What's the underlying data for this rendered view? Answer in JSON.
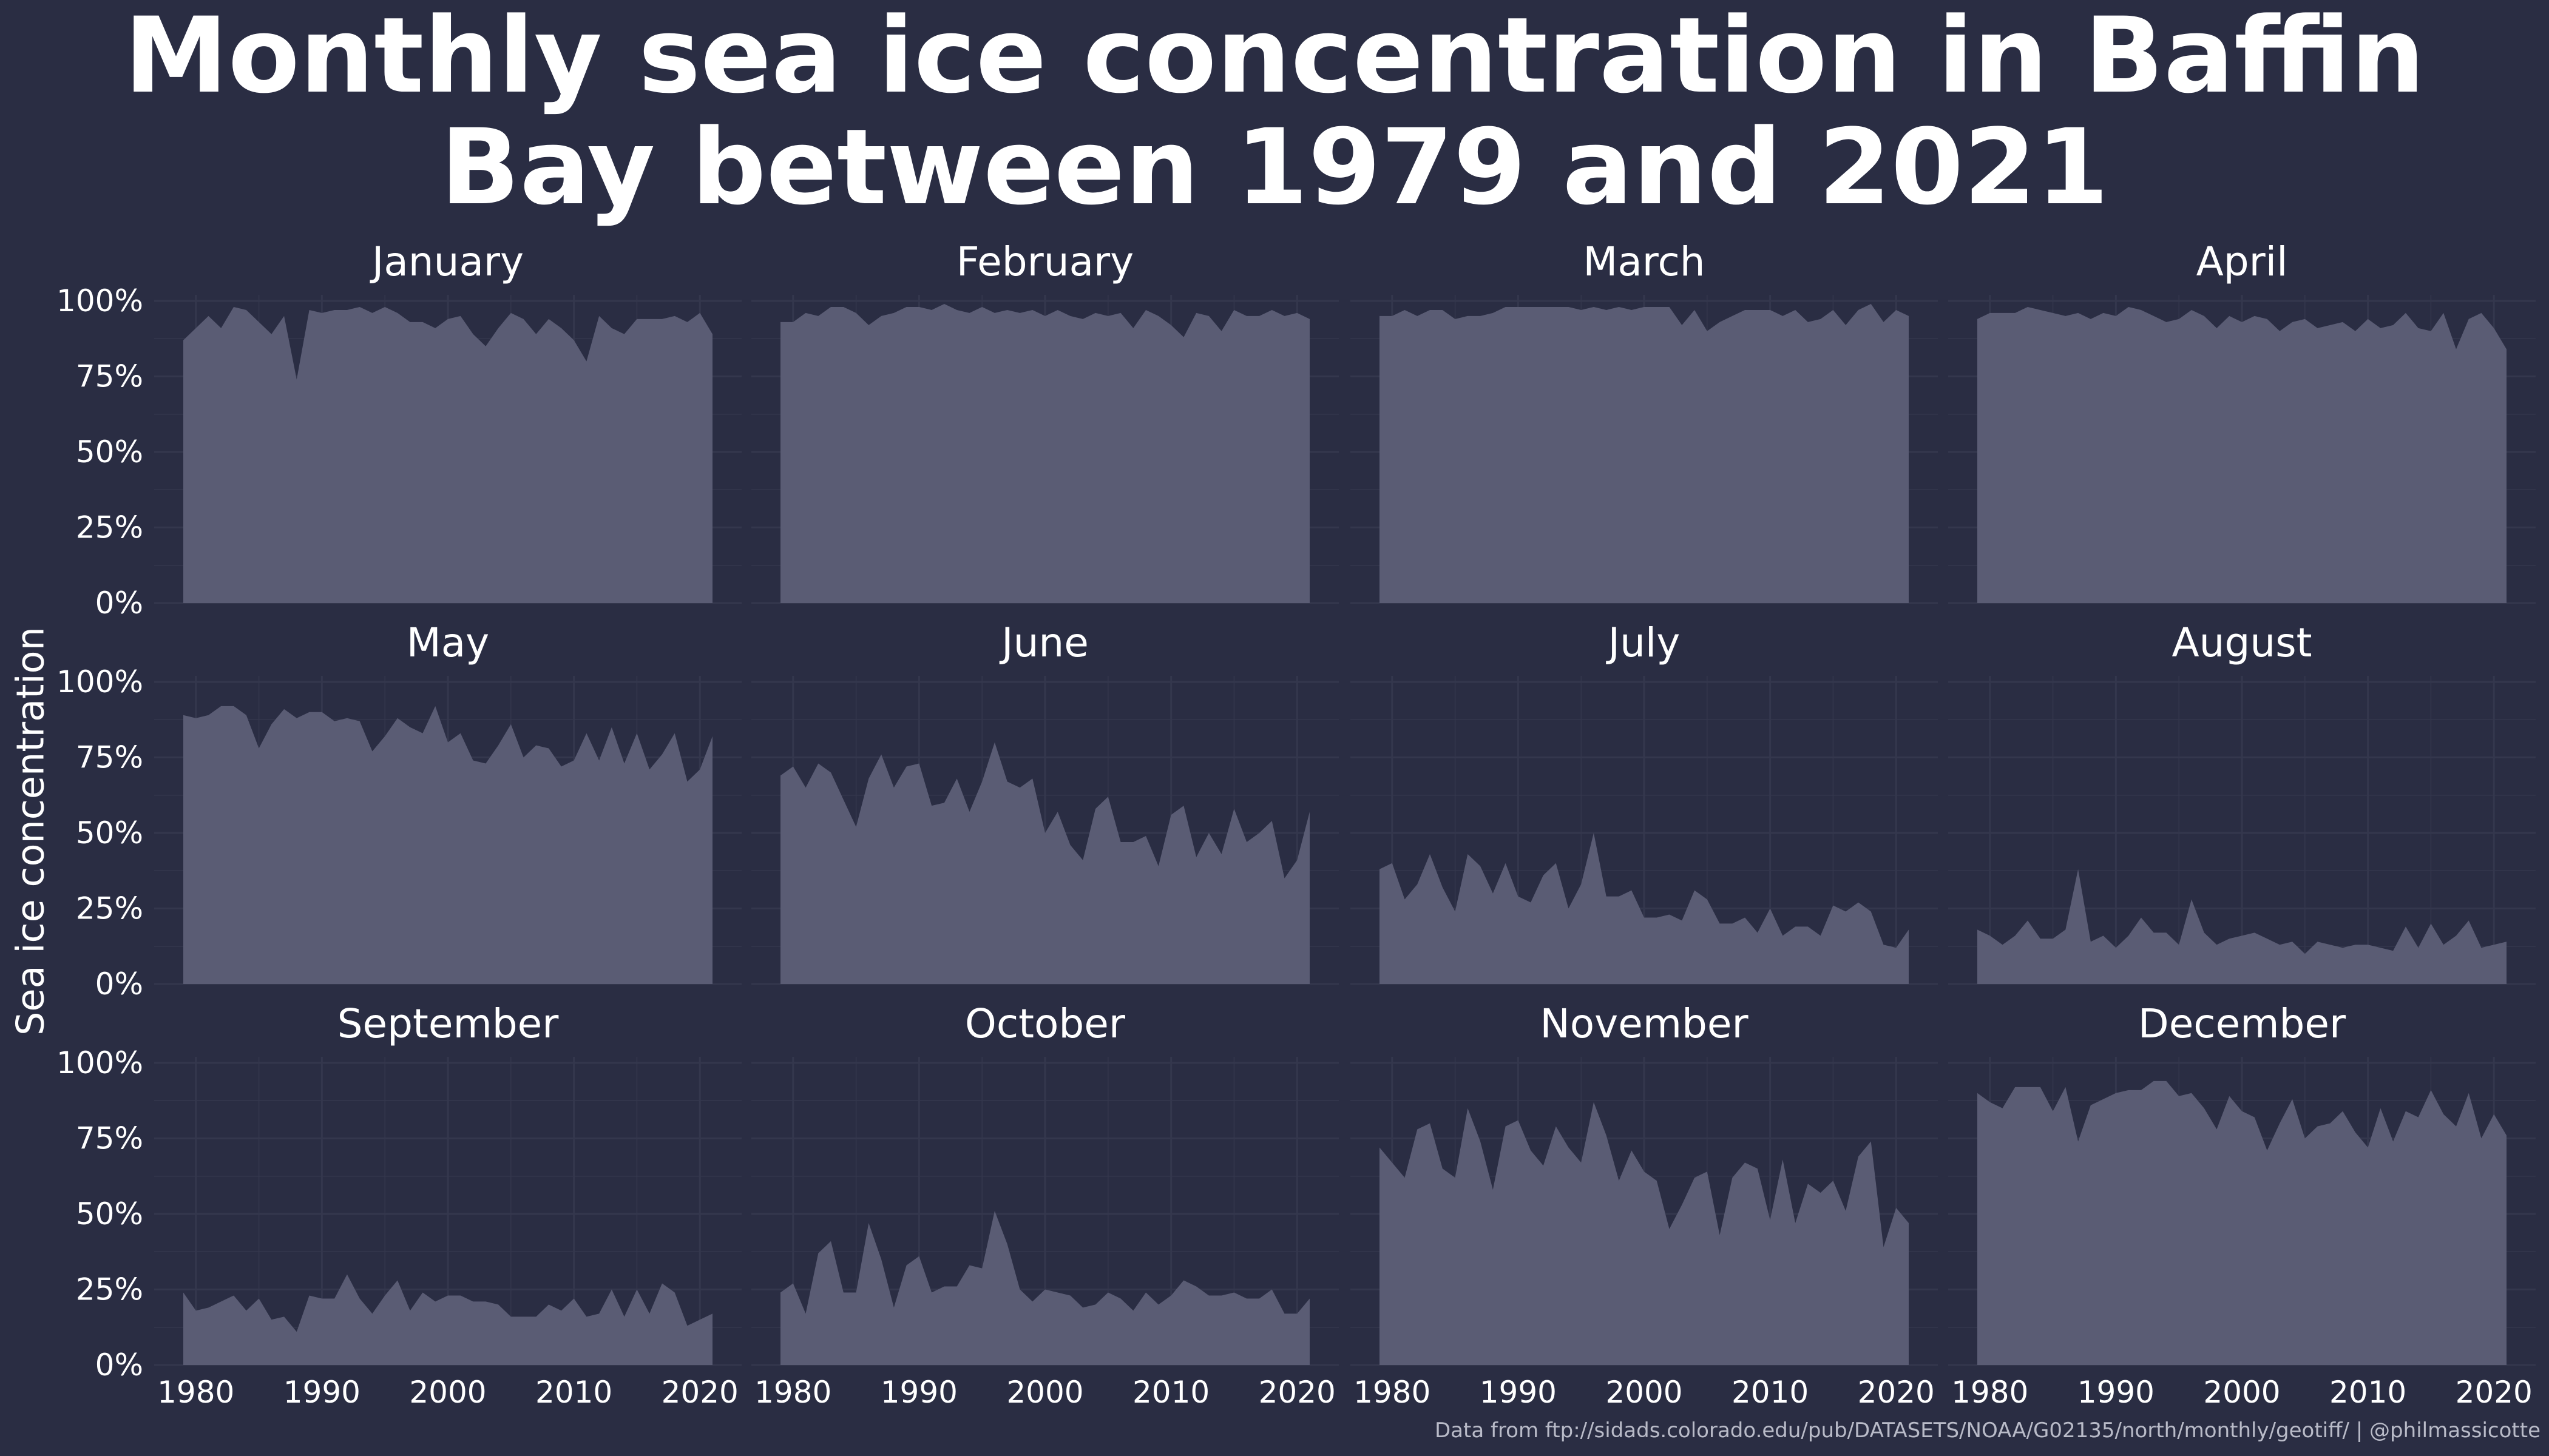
{
  "title_lines": [
    "Monthly sea ice concentration in Baffin",
    "Bay between 1979 and 2021"
  ],
  "ylabel": "Sea ice concentration",
  "caption": "Data from ftp://sidads.colorado.edu/pub/DATASETS/NOAA/G02135/north/monthly/geotiff/ | @philmassicotte",
  "colors": {
    "background": "#2a2d43",
    "area": "#5a5c74",
    "grid": "#34374d",
    "text": "#ffffff",
    "caption": "#b9bbc8"
  },
  "chart_data": {
    "type": "area",
    "layout": "facets 3 rows x 4 columns",
    "xlim": [
      1979,
      2021
    ],
    "ylim": [
      0,
      100
    ],
    "x_ticks": [
      1980,
      1990,
      2000,
      2010,
      2020
    ],
    "y_ticks": [
      "0%",
      "25%",
      "50%",
      "75%",
      "100%"
    ],
    "grid": true,
    "years": [
      1979,
      1980,
      1981,
      1982,
      1983,
      1984,
      1985,
      1986,
      1987,
      1988,
      1989,
      1990,
      1991,
      1992,
      1993,
      1994,
      1995,
      1996,
      1997,
      1998,
      1999,
      2000,
      2001,
      2002,
      2003,
      2004,
      2005,
      2006,
      2007,
      2008,
      2009,
      2010,
      2011,
      2012,
      2013,
      2014,
      2015,
      2016,
      2017,
      2018,
      2019,
      2020,
      2021
    ],
    "facets": [
      {
        "month": "January",
        "values": [
          87,
          91,
          95,
          91,
          98,
          97,
          93,
          89,
          95,
          74,
          97,
          96,
          97,
          97,
          98,
          96,
          98,
          96,
          93,
          93,
          91,
          94,
          95,
          89,
          85,
          91,
          96,
          94,
          89,
          94,
          91,
          87,
          80,
          95,
          91,
          89,
          94,
          94,
          94,
          95,
          93,
          96,
          89
        ]
      },
      {
        "month": "February",
        "values": [
          93,
          93,
          96,
          95,
          98,
          98,
          96,
          92,
          95,
          96,
          98,
          98,
          97,
          99,
          97,
          96,
          98,
          96,
          97,
          96,
          97,
          95,
          97,
          95,
          94,
          96,
          95,
          96,
          91,
          97,
          95,
          92,
          88,
          96,
          95,
          90,
          97,
          95,
          95,
          97,
          95,
          96,
          94
        ]
      },
      {
        "month": "March",
        "values": [
          95,
          95,
          97,
          95,
          97,
          97,
          94,
          95,
          95,
          96,
          98,
          98,
          98,
          98,
          98,
          98,
          97,
          98,
          97,
          98,
          97,
          98,
          98,
          98,
          92,
          97,
          90,
          93,
          95,
          97,
          97,
          97,
          95,
          97,
          93,
          94,
          97,
          92,
          97,
          99,
          93,
          97,
          95
        ]
      },
      {
        "month": "April",
        "values": [
          94,
          96,
          96,
          96,
          98,
          97,
          96,
          95,
          96,
          94,
          96,
          95,
          98,
          97,
          95,
          93,
          94,
          97,
          95,
          91,
          95,
          93,
          95,
          94,
          90,
          93,
          94,
          91,
          92,
          93,
          90,
          94,
          91,
          92,
          96,
          91,
          90,
          96,
          84,
          94,
          96,
          91,
          84
        ]
      },
      {
        "month": "May",
        "values": [
          89,
          88,
          89,
          92,
          92,
          89,
          78,
          86,
          91,
          88,
          90,
          90,
          87,
          88,
          87,
          77,
          82,
          88,
          85,
          83,
          92,
          80,
          83,
          74,
          73,
          79,
          86,
          75,
          79,
          78,
          72,
          74,
          83,
          74,
          85,
          73,
          83,
          71,
          76,
          83,
          67,
          71,
          82
        ]
      },
      {
        "month": "June",
        "values": [
          69,
          72,
          65,
          73,
          70,
          61,
          52,
          68,
          76,
          65,
          72,
          73,
          59,
          60,
          68,
          57,
          67,
          80,
          67,
          65,
          68,
          50,
          57,
          46,
          41,
          58,
          62,
          47,
          47,
          49,
          39,
          56,
          59,
          42,
          50,
          43,
          58,
          47,
          50,
          54,
          35,
          41,
          57
        ]
      },
      {
        "month": "July",
        "values": [
          38,
          40,
          28,
          33,
          43,
          32,
          24,
          43,
          39,
          30,
          40,
          29,
          27,
          36,
          40,
          25,
          33,
          50,
          29,
          29,
          31,
          22,
          22,
          23,
          21,
          31,
          28,
          20,
          20,
          22,
          17,
          25,
          16,
          19,
          19,
          16,
          26,
          24,
          27,
          24,
          13,
          12,
          18
        ]
      },
      {
        "month": "August",
        "values": [
          18,
          16,
          13,
          16,
          21,
          15,
          15,
          18,
          38,
          14,
          16,
          12,
          16,
          22,
          17,
          17,
          13,
          28,
          17,
          13,
          15,
          16,
          17,
          15,
          13,
          14,
          10,
          14,
          13,
          12,
          13,
          13,
          12,
          11,
          19,
          12,
          20,
          13,
          16,
          21,
          12,
          13,
          14
        ]
      },
      {
        "month": "September",
        "values": [
          24,
          18,
          19,
          21,
          23,
          18,
          22,
          15,
          16,
          11,
          23,
          22,
          22,
          30,
          22,
          17,
          23,
          28,
          18,
          24,
          21,
          23,
          23,
          21,
          21,
          20,
          16,
          16,
          16,
          20,
          18,
          22,
          16,
          17,
          25,
          16,
          25,
          17,
          27,
          24,
          13,
          15,
          17
        ]
      },
      {
        "month": "October",
        "values": [
          24,
          27,
          17,
          37,
          41,
          24,
          24,
          47,
          35,
          19,
          33,
          36,
          24,
          26,
          26,
          33,
          32,
          51,
          40,
          25,
          21,
          25,
          24,
          23,
          19,
          20,
          24,
          22,
          18,
          24,
          20,
          23,
          28,
          26,
          23,
          23,
          24,
          22,
          22,
          25,
          17,
          17,
          22
        ]
      },
      {
        "month": "November",
        "values": [
          72,
          67,
          62,
          78,
          80,
          65,
          62,
          85,
          74,
          58,
          79,
          81,
          71,
          66,
          79,
          72,
          67,
          87,
          76,
          61,
          71,
          64,
          61,
          45,
          53,
          62,
          64,
          43,
          62,
          67,
          65,
          48,
          68,
          47,
          60,
          57,
          61,
          51,
          69,
          74,
          39,
          52,
          47
        ]
      },
      {
        "month": "December",
        "values": [
          90,
          87,
          85,
          92,
          92,
          92,
          84,
          92,
          74,
          86,
          88,
          90,
          91,
          91,
          94,
          94,
          89,
          90,
          85,
          78,
          89,
          84,
          82,
          71,
          80,
          88,
          75,
          79,
          80,
          84,
          77,
          72,
          85,
          74,
          84,
          82,
          91,
          83,
          79,
          90,
          75,
          83,
          76
        ]
      }
    ]
  }
}
